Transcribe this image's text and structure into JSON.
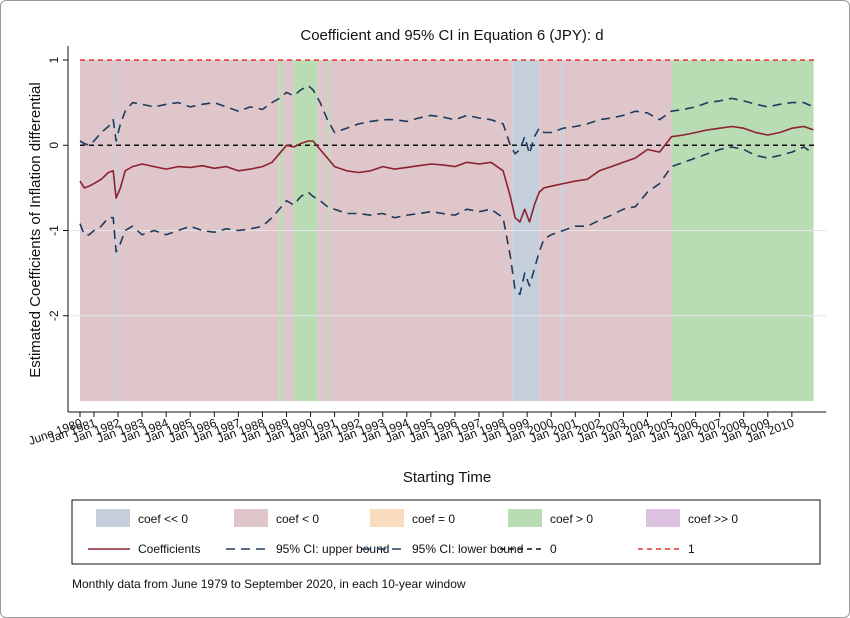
{
  "chart_data": {
    "type": "line",
    "title": "Coefficient and 95% CI in Equation 6 (JPY): d",
    "xlabel": "Starting Time",
    "ylabel": "Estimated Coefficients of Inflation differential",
    "note": "Monthly data from June 1979 to September 2020, in each 10-year window",
    "x_start": "June 1980",
    "x_end": "Dec 2010",
    "ylim": [
      -3,
      1
    ],
    "y_ticks": [
      1,
      0,
      -1,
      -2
    ],
    "x_tick_labels": [
      "June 1980",
      "Jan 1981",
      "Jan 1982",
      "Jan 1983",
      "Jan 1984",
      "Jan 1985",
      "Jan 1986",
      "Jan 1987",
      "Jan 1988",
      "Jan 1989",
      "Jan 1990",
      "Jan 1991",
      "Jan 1992",
      "Jan 1993",
      "Jan 1994",
      "Jan 1995",
      "Jan 1996",
      "Jan 1997",
      "Jan 1998",
      "Jan 1999",
      "Jan 2000",
      "Jan 2001",
      "Jan 2002",
      "Jan 2003",
      "Jan 2004",
      "Jan 2005",
      "Jan 2006",
      "Jan 2007",
      "Jan 2008",
      "Jan 2009",
      "Jan 2010"
    ],
    "regions": [
      {
        "start": "1980.42",
        "end": "1981.92",
        "class": "coef < 0"
      },
      {
        "start": "1981.92",
        "end": "1982.00",
        "class": "coef << 0"
      },
      {
        "start": "1982.00",
        "end": "1988.70",
        "class": "coef < 0"
      },
      {
        "start": "1988.70",
        "end": "1988.85",
        "class": "coef > 0"
      },
      {
        "start": "1988.85",
        "end": "1989.30",
        "class": "coef < 0"
      },
      {
        "start": "1989.30",
        "end": "1990.30",
        "class": "coef > 0"
      },
      {
        "start": "1990.30",
        "end": "1990.70",
        "class": "coef < 0"
      },
      {
        "start": "1990.70",
        "end": "1990.80",
        "class": "coef > 0"
      },
      {
        "start": "1990.80",
        "end": "1998.40",
        "class": "coef < 0"
      },
      {
        "start": "1998.40",
        "end": "1999.50",
        "class": "coef << 0"
      },
      {
        "start": "1999.50",
        "end": "2000.40",
        "class": "coef < 0"
      },
      {
        "start": "2000.40",
        "end": "2000.50",
        "class": "coef << 0"
      },
      {
        "start": "2000.50",
        "end": "2005.00",
        "class": "coef < 0"
      },
      {
        "start": "2005.00",
        "end": "2010.90",
        "class": "coef > 0"
      }
    ],
    "x": [
      1980.42,
      1980.6,
      1980.8,
      1981.0,
      1981.3,
      1981.6,
      1981.8,
      1981.92,
      1982.1,
      1982.3,
      1982.6,
      1983.0,
      1983.5,
      1984.0,
      1984.5,
      1985.0,
      1985.5,
      1986.0,
      1986.5,
      1987.0,
      1987.5,
      1988.0,
      1988.4,
      1988.7,
      1989.0,
      1989.3,
      1989.6,
      1989.9,
      1990.1,
      1990.4,
      1990.7,
      1991.0,
      1991.5,
      1992.0,
      1992.5,
      1993.0,
      1993.5,
      1994.0,
      1994.5,
      1995.0,
      1995.5,
      1996.0,
      1996.5,
      1997.0,
      1997.5,
      1998.0,
      1998.3,
      1998.5,
      1998.7,
      1998.9,
      1999.1,
      1999.3,
      1999.5,
      1999.7,
      2000.0,
      2000.5,
      2001.0,
      2001.5,
      2002.0,
      2002.5,
      2003.0,
      2003.5,
      2004.0,
      2004.5,
      2005.0,
      2005.5,
      2006.0,
      2006.5,
      2007.0,
      2007.5,
      2008.0,
      2008.5,
      2009.0,
      2009.5,
      2010.0,
      2010.5,
      2010.9
    ],
    "series": [
      {
        "name": "Coefficients",
        "values": [
          -0.42,
          -0.5,
          -0.48,
          -0.45,
          -0.4,
          -0.32,
          -0.3,
          -0.62,
          -0.5,
          -0.3,
          -0.25,
          -0.22,
          -0.25,
          -0.28,
          -0.25,
          -0.26,
          -0.24,
          -0.27,
          -0.25,
          -0.3,
          -0.28,
          -0.25,
          -0.2,
          -0.1,
          0.0,
          -0.02,
          0.02,
          0.05,
          0.05,
          -0.05,
          -0.15,
          -0.25,
          -0.3,
          -0.32,
          -0.3,
          -0.25,
          -0.28,
          -0.26,
          -0.24,
          -0.22,
          -0.23,
          -0.25,
          -0.2,
          -0.22,
          -0.2,
          -0.3,
          -0.6,
          -0.85,
          -0.9,
          -0.75,
          -0.9,
          -0.7,
          -0.55,
          -0.5,
          -0.48,
          -0.45,
          -0.42,
          -0.4,
          -0.3,
          -0.25,
          -0.2,
          -0.15,
          -0.05,
          -0.08,
          0.1,
          0.12,
          0.15,
          0.18,
          0.2,
          0.22,
          0.2,
          0.15,
          0.12,
          0.15,
          0.2,
          0.22,
          0.18
        ]
      },
      {
        "name": "95% CI: upper bound",
        "values": [
          0.05,
          0.02,
          0.0,
          0.05,
          0.15,
          0.22,
          0.3,
          0.05,
          0.25,
          0.4,
          0.5,
          0.48,
          0.45,
          0.48,
          0.5,
          0.45,
          0.48,
          0.5,
          0.45,
          0.4,
          0.45,
          0.42,
          0.5,
          0.55,
          0.62,
          0.58,
          0.65,
          0.7,
          0.65,
          0.5,
          0.3,
          0.15,
          0.2,
          0.25,
          0.28,
          0.3,
          0.3,
          0.28,
          0.32,
          0.35,
          0.33,
          0.3,
          0.35,
          0.32,
          0.3,
          0.25,
          0.0,
          -0.1,
          -0.05,
          0.1,
          -0.1,
          0.1,
          0.2,
          0.15,
          0.15,
          0.2,
          0.22,
          0.25,
          0.3,
          0.32,
          0.35,
          0.4,
          0.38,
          0.3,
          0.4,
          0.42,
          0.45,
          0.5,
          0.52,
          0.55,
          0.52,
          0.48,
          0.45,
          0.48,
          0.5,
          0.5,
          0.45
        ]
      },
      {
        "name": "95% CI: lower bound",
        "values": [
          -0.92,
          -1.05,
          -1.05,
          -1.0,
          -0.95,
          -0.85,
          -0.85,
          -1.25,
          -1.15,
          -1.0,
          -0.95,
          -1.05,
          -1.0,
          -1.05,
          -1.0,
          -0.95,
          -1.0,
          -1.02,
          -0.98,
          -1.0,
          -0.98,
          -0.95,
          -0.85,
          -0.75,
          -0.65,
          -0.7,
          -0.6,
          -0.55,
          -0.6,
          -0.65,
          -0.72,
          -0.75,
          -0.8,
          -0.8,
          -0.82,
          -0.8,
          -0.85,
          -0.82,
          -0.8,
          -0.78,
          -0.8,
          -0.82,
          -0.75,
          -0.78,
          -0.75,
          -0.85,
          -1.3,
          -1.7,
          -1.75,
          -1.5,
          -1.65,
          -1.45,
          -1.25,
          -1.1,
          -1.05,
          -1.0,
          -0.95,
          -0.95,
          -0.88,
          -0.82,
          -0.75,
          -0.72,
          -0.55,
          -0.45,
          -0.25,
          -0.2,
          -0.15,
          -0.1,
          -0.05,
          -0.02,
          -0.05,
          -0.12,
          -0.15,
          -0.12,
          -0.08,
          -0.02,
          -0.1
        ]
      }
    ],
    "reference_lines": [
      {
        "name": "0",
        "y": 0,
        "color": "#111111"
      },
      {
        "name": "1",
        "y": 1,
        "color": "#e8342f"
      }
    ],
    "colors": {
      "coef << 0": "#c6d0dc",
      "coef < 0": "#dfc6cb",
      "coef = 0": "#f9dcbd",
      "coef > 0": "#b9dcb4",
      "coef >> 0": "#dcc3df",
      "Coefficients": "#8c2230",
      "95% CI: upper bound": "#1e3b5c",
      "95% CI: lower bound": "#1e3b5c"
    },
    "legend": {
      "placement": "bottom",
      "entries": [
        {
          "label": "coef << 0",
          "kind": "swatch"
        },
        {
          "label": "coef < 0",
          "kind": "swatch"
        },
        {
          "label": "coef = 0",
          "kind": "swatch"
        },
        {
          "label": "coef > 0",
          "kind": "swatch"
        },
        {
          "label": "coef >> 0",
          "kind": "swatch"
        },
        {
          "label": "Coefficients",
          "kind": "solid"
        },
        {
          "label": "95% CI: upper bound",
          "kind": "dash"
        },
        {
          "label": "95% CI: lower bound",
          "kind": "dash"
        },
        {
          "label": "0",
          "kind": "dot"
        },
        {
          "label": "1",
          "kind": "dot-red"
        }
      ]
    }
  }
}
